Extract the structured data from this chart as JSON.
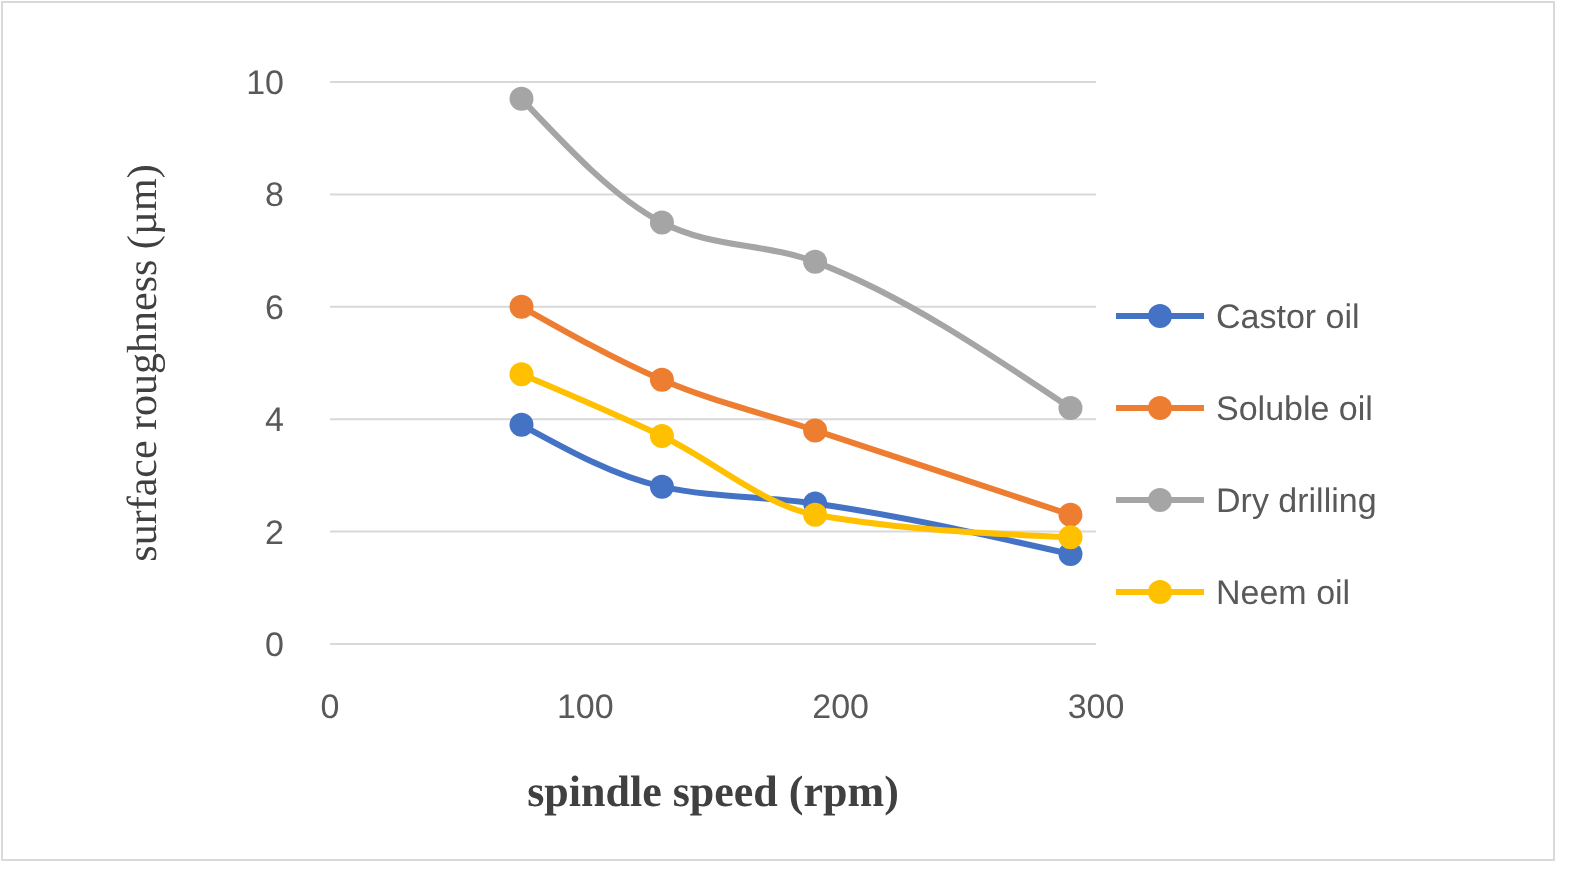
{
  "chart_data": {
    "type": "line",
    "xlabel": "spindle speed (rpm)",
    "ylabel": "surface roughness (µm)",
    "x": [
      75,
      130,
      190,
      290
    ],
    "series": [
      {
        "name": "Castor oil",
        "color": "#4472c4",
        "values": [
          3.9,
          2.8,
          2.5,
          1.6
        ]
      },
      {
        "name": "Soluble oil",
        "color": "#ed7d31",
        "values": [
          6.0,
          4.7,
          3.8,
          2.3
        ]
      },
      {
        "name": "Dry drilling",
        "color": "#a5a5a5",
        "values": [
          9.7,
          7.5,
          6.8,
          4.2
        ]
      },
      {
        "name": "Neem oil",
        "color": "#ffc000",
        "values": [
          4.8,
          3.7,
          2.3,
          1.9
        ]
      }
    ],
    "xlim": [
      0,
      300
    ],
    "xticks": [
      0,
      100,
      200,
      300
    ],
    "ylim": [
      0,
      10
    ],
    "yticks": [
      0,
      2,
      4,
      6,
      8,
      10
    ],
    "grid": "y",
    "legend": "right",
    "marker": "circle",
    "line_style": "solid"
  }
}
